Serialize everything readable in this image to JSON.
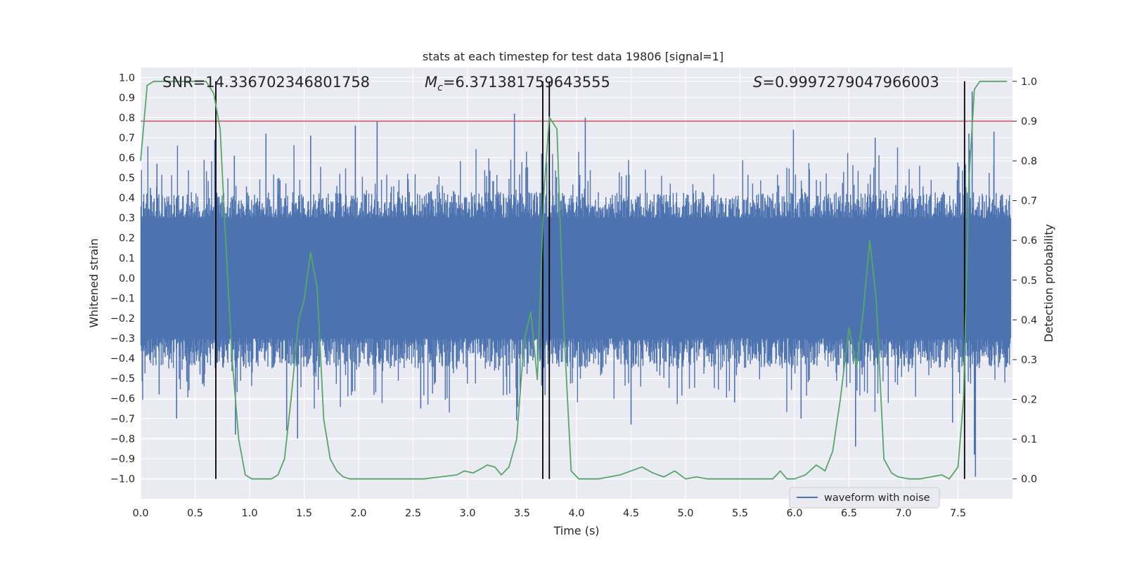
{
  "chart_data": {
    "type": "line",
    "title": "stats at each timestep for test data 19806 [signal=1]",
    "xlabel": "Time (s)",
    "ylabel": "Whitened strain",
    "y2label": "Detection probability",
    "xlim": [
      0.0,
      8.0
    ],
    "ylim": [
      -1.1,
      1.05
    ],
    "y2lim": [
      -0.05,
      1.035
    ],
    "xticks": [
      "0.0",
      "0.5",
      "1.0",
      "1.5",
      "2.0",
      "2.5",
      "3.0",
      "3.5",
      "4.0",
      "4.5",
      "5.0",
      "5.5",
      "6.0",
      "6.5",
      "7.0",
      "7.5"
    ],
    "yticks": [
      "1.0",
      "0.9",
      "0.8",
      "0.7",
      "0.6",
      "0.5",
      "0.4",
      "0.3",
      "0.2",
      "0.1",
      "0.0",
      "−0.1",
      "−0.2",
      "−0.3",
      "−0.4",
      "−0.5",
      "−0.6",
      "−0.7",
      "−0.8",
      "−0.9",
      "−1.0"
    ],
    "y2ticks": [
      "1.0",
      "0.9",
      "0.8",
      "0.7",
      "0.6",
      "0.5",
      "0.4",
      "0.3",
      "0.2",
      "0.1",
      "0.0"
    ],
    "annotations": {
      "snr": "SNR=14.336702346801758",
      "mc_symbol": "M",
      "mc_sub": "c",
      "mc_value": "=6.371381759643555",
      "s_symbol": "S",
      "s_value": "=0.9997279047966003"
    },
    "legend": {
      "label": "waveform with noise",
      "location": "lower-right"
    },
    "threshold": {
      "value": 0.9,
      "axis": "right",
      "color": "#c44e52"
    },
    "vertical_lines": [
      0.69,
      3.69,
      3.75,
      7.56
    ],
    "series": [
      {
        "name": "waveform with noise",
        "color": "#4c72b0",
        "axis": "left",
        "style": "noise",
        "envelope_upper": 0.43,
        "envelope_lower": -0.45,
        "core_amplitude": 0.3,
        "peaks": [
          {
            "t": 0.09,
            "v": 0.45
          },
          {
            "t": 0.15,
            "v": 0.57
          },
          {
            "t": 0.17,
            "v": -0.58
          },
          {
            "t": 0.33,
            "v": -0.7
          },
          {
            "t": 0.68,
            "v": 0.69
          },
          {
            "t": 0.86,
            "v": 0.61
          },
          {
            "t": 0.87,
            "v": -0.78
          },
          {
            "t": 1.15,
            "v": 0.72
          },
          {
            "t": 1.34,
            "v": -0.76
          },
          {
            "t": 1.44,
            "v": -0.8
          },
          {
            "t": 1.56,
            "v": 0.71
          },
          {
            "t": 1.97,
            "v": 0.76
          },
          {
            "t": 2.17,
            "v": 0.78
          },
          {
            "t": 2.57,
            "v": -0.65
          },
          {
            "t": 3.43,
            "v": 0.82
          },
          {
            "t": 3.45,
            "v": -0.71
          },
          {
            "t": 3.68,
            "v": 0.62
          },
          {
            "t": 4.08,
            "v": 0.8
          },
          {
            "t": 4.5,
            "v": -0.73
          },
          {
            "t": 5.45,
            "v": -0.62
          },
          {
            "t": 5.99,
            "v": 0.74
          },
          {
            "t": 6.06,
            "v": -0.7
          },
          {
            "t": 6.56,
            "v": -0.84
          },
          {
            "t": 6.74,
            "v": 0.7
          },
          {
            "t": 7.45,
            "v": -0.72
          },
          {
            "t": 7.6,
            "v": 0.72
          },
          {
            "t": 7.63,
            "v": 0.93
          },
          {
            "t": 7.66,
            "v": -0.99
          },
          {
            "t": 7.83,
            "v": 0.73
          },
          {
            "t": 7.65,
            "v": -0.88
          }
        ]
      },
      {
        "name": "detection probability",
        "color": "#55a868",
        "axis": "right",
        "style": "line",
        "x": [
          0.0,
          0.06,
          0.12,
          0.2,
          0.3,
          0.4,
          0.5,
          0.6,
          0.67,
          0.73,
          0.78,
          0.84,
          0.9,
          0.96,
          1.02,
          1.1,
          1.2,
          1.26,
          1.32,
          1.38,
          1.45,
          1.5,
          1.56,
          1.62,
          1.68,
          1.74,
          1.8,
          1.86,
          1.92,
          2.0,
          2.2,
          2.6,
          2.9,
          2.97,
          3.05,
          3.12,
          3.18,
          3.25,
          3.31,
          3.38,
          3.45,
          3.52,
          3.58,
          3.64,
          3.7,
          3.75,
          3.82,
          3.88,
          3.95,
          4.02,
          4.2,
          4.4,
          4.6,
          4.7,
          4.8,
          4.9,
          5.0,
          5.1,
          5.2,
          5.5,
          5.8,
          5.87,
          5.93,
          6.0,
          6.1,
          6.2,
          6.28,
          6.35,
          6.42,
          6.5,
          6.57,
          6.63,
          6.69,
          6.75,
          6.82,
          6.89,
          6.95,
          7.05,
          7.15,
          7.25,
          7.35,
          7.42,
          7.5,
          7.55,
          7.6,
          7.65,
          7.7,
          7.8,
          7.95
        ],
        "y": [
          0.8,
          0.99,
          1.0,
          1.0,
          1.0,
          1.0,
          1.0,
          1.0,
          0.97,
          0.88,
          0.6,
          0.3,
          0.1,
          0.01,
          0.0,
          0.0,
          0.0,
          0.01,
          0.05,
          0.2,
          0.4,
          0.45,
          0.57,
          0.48,
          0.15,
          0.05,
          0.02,
          0.005,
          0.0,
          0.0,
          0.0,
          0.0,
          0.01,
          0.02,
          0.015,
          0.025,
          0.035,
          0.03,
          0.01,
          0.03,
          0.1,
          0.35,
          0.42,
          0.25,
          0.72,
          0.91,
          0.88,
          0.4,
          0.02,
          0.0,
          0.0,
          0.01,
          0.03,
          0.015,
          0.005,
          0.02,
          0.0,
          0.005,
          0.0,
          0.0,
          0.0,
          0.02,
          0.0,
          0.0,
          0.01,
          0.035,
          0.02,
          0.07,
          0.2,
          0.38,
          0.28,
          0.42,
          0.6,
          0.45,
          0.05,
          0.015,
          0.005,
          0.0,
          0.0,
          0.005,
          0.01,
          0.0,
          0.03,
          0.2,
          0.75,
          0.98,
          1.0,
          1.0,
          1.0
        ]
      }
    ]
  }
}
